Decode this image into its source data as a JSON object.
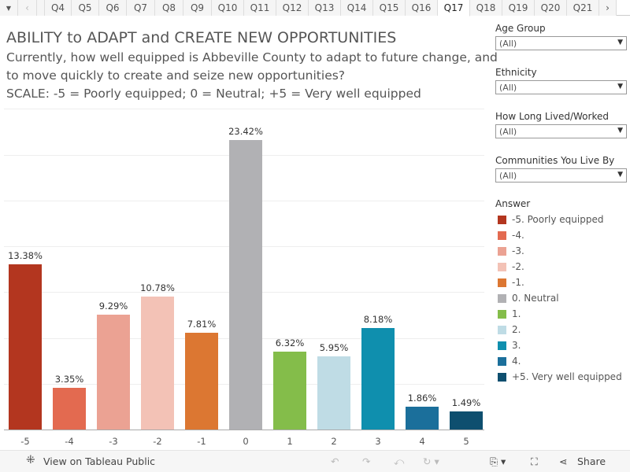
{
  "tabs": {
    "left_arrow": "‹",
    "right_arrow": "›",
    "items": [
      "Q4",
      "Q5",
      "Q6",
      "Q7",
      "Q8",
      "Q9",
      "Q10",
      "Q11",
      "Q12",
      "Q13",
      "Q14",
      "Q15",
      "Q16",
      "Q17",
      "Q18",
      "Q19",
      "Q20",
      "Q21"
    ],
    "active": "Q17"
  },
  "header": {
    "title": "ABILITY to ADAPT and CREATE NEW OPPORTUNITIES",
    "line1": "Currently, how well equipped is Abbeville County to adapt to future change, and",
    "line2": "to move quickly to create and seize new opportunities?",
    "line3": "SCALE: -5 = Poorly equipped; 0 = Neutral; +5 = Very well equipped"
  },
  "filters": [
    {
      "label": "Age Group",
      "value": "(All)"
    },
    {
      "label": "Ethnicity",
      "value": "(All)"
    },
    {
      "label": "How Long Lived/Worked",
      "value": "(All)"
    },
    {
      "label": "Communities You Live By",
      "value": "(All)"
    }
  ],
  "legend": {
    "title": "Answer",
    "items": [
      {
        "label": "-5. Poorly equipped",
        "color": "#b3361f"
      },
      {
        "label": "-4.",
        "color": "#e36a50"
      },
      {
        "label": "-3.",
        "color": "#eba293"
      },
      {
        "label": "-2.",
        "color": "#f3c2b6"
      },
      {
        "label": "-1.",
        "color": "#dc7732"
      },
      {
        "label": "0. Neutral",
        "color": "#b1b1b4"
      },
      {
        "label": "1.",
        "color": "#84bd4a"
      },
      {
        "label": "2.",
        "color": "#bfdce5"
      },
      {
        "label": "3.",
        "color": "#0f8fae"
      },
      {
        "label": "4.",
        "color": "#1b6f9b"
      },
      {
        "label": "+5. Very well equipped",
        "color": "#0e4f6f"
      }
    ]
  },
  "chart_data": {
    "type": "bar",
    "categories": [
      "-5",
      "-4",
      "-3",
      "-2",
      "-1",
      "0",
      "1",
      "2",
      "3",
      "4",
      "5"
    ],
    "values": [
      13.38,
      3.35,
      9.29,
      10.78,
      7.81,
      23.42,
      6.32,
      5.95,
      8.18,
      1.86,
      1.49
    ],
    "labels": [
      "13.38%",
      "3.35%",
      "9.29%",
      "10.78%",
      "7.81%",
      "23.42%",
      "6.32%",
      "5.95%",
      "8.18%",
      "1.86%",
      "1.49%"
    ],
    "colors": [
      "#b3361f",
      "#e36a50",
      "#eba293",
      "#f3c2b6",
      "#dc7732",
      "#b1b1b4",
      "#84bd4a",
      "#bfdce5",
      "#0f8fae",
      "#1b6f9b",
      "#0e4f6f"
    ],
    "ylim": [
      0,
      26
    ],
    "xlabel": "",
    "ylabel": ""
  },
  "footer": {
    "view_label": "View on Tableau Public",
    "share_label": "Share"
  }
}
